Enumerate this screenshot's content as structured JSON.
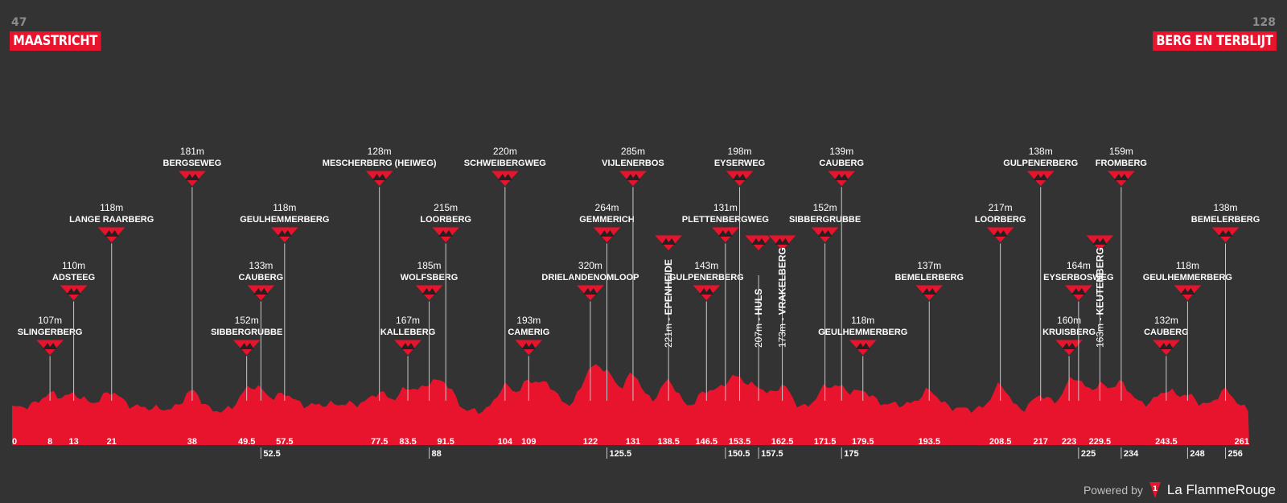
{
  "header": {
    "start_km": "47",
    "end_km": "128",
    "start_city": "MAASTRICHT",
    "finish_city": "BERG EN TERBLIJT"
  },
  "footer": {
    "powered_label": "Powered by",
    "brand_name": "La FlammeRouge"
  },
  "colors": {
    "background": "#333333",
    "profile": "#e8132c",
    "text": "#ffffff",
    "pole": "#c8c8c8"
  },
  "chart_data": {
    "type": "area",
    "title": "",
    "xlabel": "",
    "ylabel": "",
    "xlim": [
      0,
      261
    ],
    "upper_ticks": [
      "0",
      "8",
      "13",
      "21",
      "38",
      "49.5",
      "57.5",
      "77.5",
      "83.5",
      "91.5",
      "104",
      "109",
      "122",
      "131",
      "138.5",
      "146.5",
      "153.5",
      "162.5",
      "171.5",
      "179.5",
      "193.5",
      "208.5",
      "217",
      "223",
      "229.5",
      "243.5",
      "261"
    ],
    "lower_ticks": [
      "52.5",
      "88",
      "125.5",
      "150.5",
      "157.5",
      "175",
      "225",
      "234",
      "248",
      "256"
    ],
    "climbs": [
      {
        "name": "SLINGERBERG",
        "elev": "107m",
        "km": 8,
        "dir": "h"
      },
      {
        "name": "ADSTEEG",
        "elev": "110m",
        "km": 13,
        "dir": "h"
      },
      {
        "name": "LANGE RAARBERG",
        "elev": "118m",
        "km": 21,
        "dir": "h"
      },
      {
        "name": "BERGSEWEG",
        "elev": "181m",
        "km": 38,
        "dir": "h"
      },
      {
        "name": "SIBBERGRUBBE",
        "elev": "152m",
        "km": 49.5,
        "dir": "h"
      },
      {
        "name": "CAUBERG",
        "elev": "133m",
        "km": 52.5,
        "dir": "h"
      },
      {
        "name": "GEULHEMMERBERG",
        "elev": "118m",
        "km": 57.5,
        "dir": "h"
      },
      {
        "name": "MESCHERBERG (HEIWEG)",
        "elev": "128m",
        "km": 77.5,
        "dir": "h"
      },
      {
        "name": "KALLEBERG",
        "elev": "167m",
        "km": 83.5,
        "dir": "h"
      },
      {
        "name": "WOLFSBERG",
        "elev": "185m",
        "km": 88,
        "dir": "h"
      },
      {
        "name": "LOORBERG",
        "elev": "215m",
        "km": 91.5,
        "dir": "h"
      },
      {
        "name": "SCHWEIBERGWEG",
        "elev": "220m",
        "km": 104,
        "dir": "h"
      },
      {
        "name": "CAMERIG",
        "elev": "193m",
        "km": 109,
        "dir": "h"
      },
      {
        "name": "DRIELANDENOMLOOP",
        "elev": "320m",
        "km": 122,
        "dir": "h"
      },
      {
        "name": "GEMMERICH",
        "elev": "264m",
        "km": 125.5,
        "dir": "h"
      },
      {
        "name": "VIJLENERBOS",
        "elev": "285m",
        "km": 131,
        "dir": "h"
      },
      {
        "name": "EPENHEIDE",
        "elev": "221m",
        "km": 138.5,
        "dir": "v"
      },
      {
        "name": "GULPENERBERG",
        "elev": "143m",
        "km": 146.5,
        "dir": "h"
      },
      {
        "name": "PLETTENBERGWEG",
        "elev": "131m",
        "km": 150.5,
        "dir": "h"
      },
      {
        "name": "EYSERWEG",
        "elev": "198m",
        "km": 153.5,
        "dir": "h"
      },
      {
        "name": "HULS",
        "elev": "207m",
        "km": 157.5,
        "dir": "v"
      },
      {
        "name": "VRAKELBERG",
        "elev": "173m",
        "km": 162.5,
        "dir": "v"
      },
      {
        "name": "SIBBERGRUBBE",
        "elev": "152m",
        "km": 171.5,
        "dir": "h"
      },
      {
        "name": "CAUBERG",
        "elev": "139m",
        "km": 175,
        "dir": "h"
      },
      {
        "name": "GEULHEMMERBERG",
        "elev": "118m",
        "km": 179.5,
        "dir": "h"
      },
      {
        "name": "BEMELERBERG",
        "elev": "137m",
        "km": 193.5,
        "dir": "h"
      },
      {
        "name": "LOORBERG",
        "elev": "217m",
        "km": 208.5,
        "dir": "h"
      },
      {
        "name": "GULPENERBERG",
        "elev": "138m",
        "km": 217,
        "dir": "h"
      },
      {
        "name": "KRUISBERG",
        "elev": "160m",
        "km": 223,
        "dir": "h"
      },
      {
        "name": "EYSERBOSWEG",
        "elev": "164m",
        "km": 225,
        "dir": "h"
      },
      {
        "name": "KEUTENBERG",
        "elev": "163m",
        "km": 229.5,
        "dir": "v"
      },
      {
        "name": "FROMBERG",
        "elev": "159m",
        "km": 234,
        "dir": "h"
      },
      {
        "name": "CAUBERG",
        "elev": "132m",
        "km": 243.5,
        "dir": "h"
      },
      {
        "name": "GEULHEMMERBERG",
        "elev": "118m",
        "km": 248,
        "dir": "h"
      },
      {
        "name": "BEMELERBERG",
        "elev": "138m",
        "km": 256,
        "dir": "h"
      }
    ]
  }
}
